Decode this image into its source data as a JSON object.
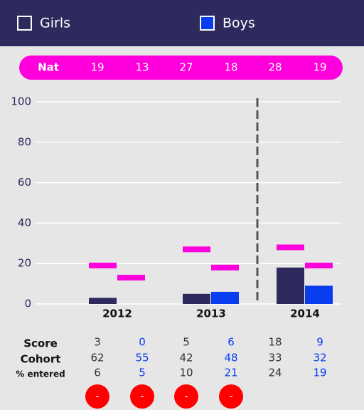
{
  "chart_data": {
    "type": "bar",
    "categories": [
      "2012",
      "2013",
      "2014"
    ],
    "series": [
      {
        "name": "Girls",
        "color": "#2e2a5e",
        "values": [
          3,
          5,
          18
        ],
        "nat": [
          19,
          27,
          28
        ],
        "cohort": [
          62,
          42,
          33
        ],
        "entered": [
          6,
          10,
          24
        ]
      },
      {
        "name": "Boys",
        "color": "#0a3cf0",
        "values": [
          0,
          6,
          9
        ],
        "nat": [
          13,
          18,
          19
        ],
        "cohort": [
          55,
          48,
          32
        ],
        "entered": [
          5,
          21,
          19
        ]
      }
    ],
    "nat_label": "Nat",
    "nat_color": "#ff00dd",
    "row_labels": [
      "Score",
      "Cohort",
      "% entered"
    ],
    "flags": [
      "-",
      "-",
      "-",
      "-"
    ],
    "ylim": [
      0,
      100
    ],
    "yticks": [
      0,
      20,
      40,
      60,
      80,
      100
    ],
    "grid": true
  }
}
